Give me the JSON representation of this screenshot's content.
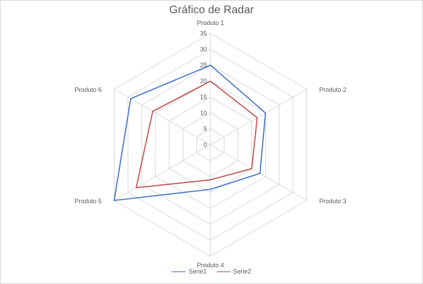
{
  "chart_data": {
    "type": "radar",
    "title": "Gráfico de Radar",
    "categories": [
      "Produto 1",
      "Produto 2",
      "Produto 3",
      "Produto 4",
      "Produto 5",
      "Produto 6"
    ],
    "ticks": [
      0,
      5,
      10,
      15,
      20,
      25,
      30,
      35
    ],
    "rlim": [
      0,
      35
    ],
    "grid": true,
    "legend_position": "bottom",
    "series": [
      {
        "name": "Serie1",
        "color": "#4472c4",
        "values": [
          25,
          20,
          18,
          14,
          35,
          29
        ]
      },
      {
        "name": "Serie2",
        "color": "#c0504d",
        "values": [
          20,
          17,
          15,
          11,
          27,
          21
        ]
      }
    ]
  }
}
